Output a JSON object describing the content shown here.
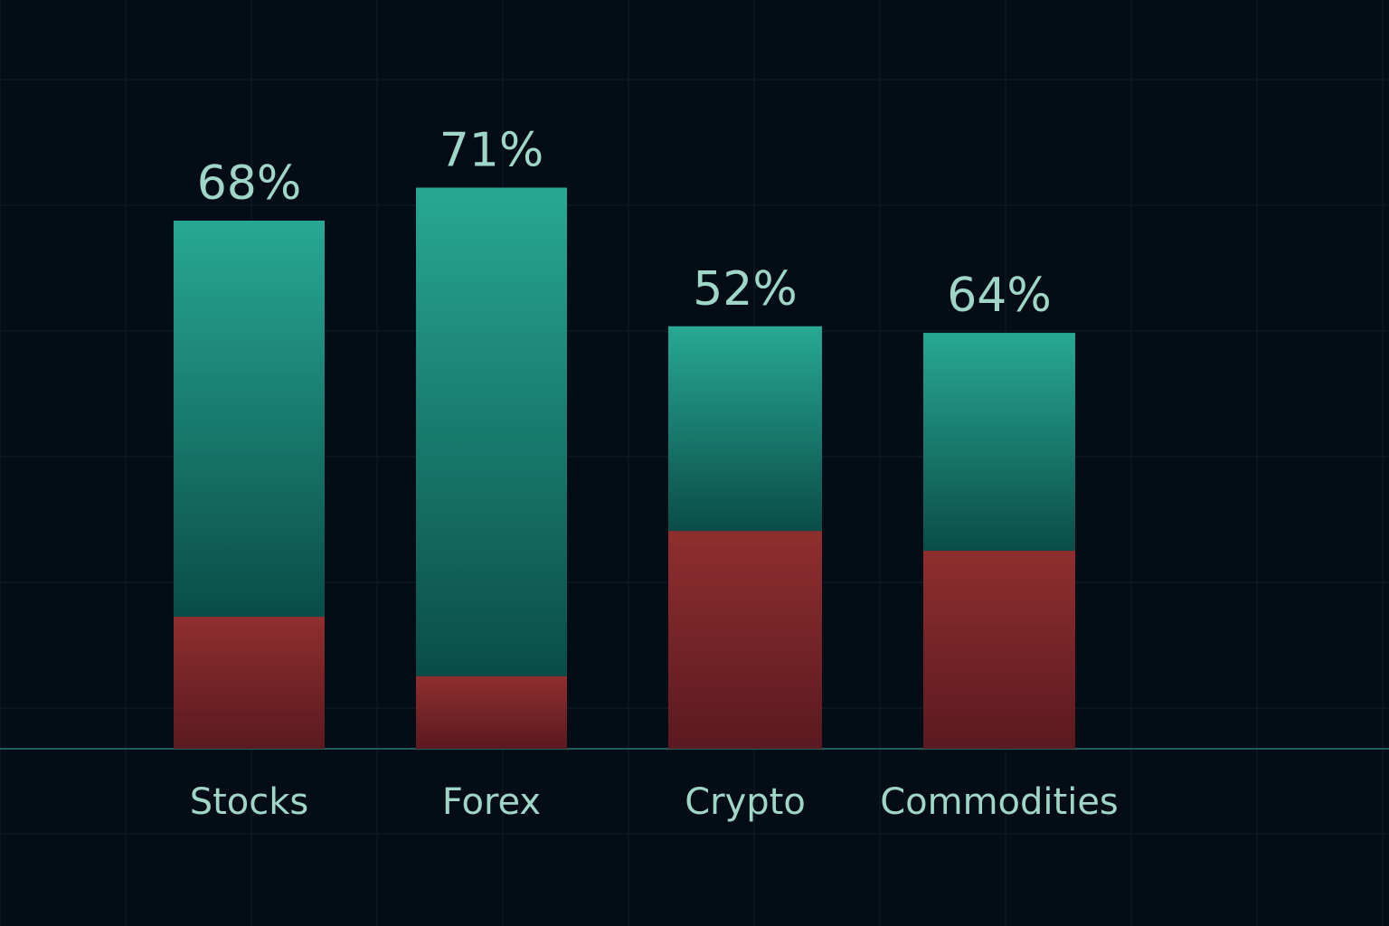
{
  "chart_data": {
    "type": "bar",
    "stacked": true,
    "categories": [
      "Stocks",
      "Forex",
      "Crypto",
      "Commodities"
    ],
    "data_labels": [
      "68%",
      "71%",
      "52%",
      "64%"
    ],
    "series": [
      {
        "color": "#822a2c",
        "values": [
          20,
          11,
          33,
          30
        ]
      },
      {
        "color": "#1b8e7f",
        "values": [
          60,
          74,
          31,
          33
        ]
      }
    ],
    "ylim": [
      0,
      100
    ],
    "grid": true,
    "legend": "none",
    "colors": {
      "background": "#040d16",
      "grid": "#0e1f29",
      "baseline": "#1f5e5a",
      "label": "#9fd6c8",
      "win_top": "#28a895",
      "win_bottom": "#0a4d48",
      "loss_top": "#8f2e2f",
      "loss_bottom": "#5a1a1f"
    }
  }
}
